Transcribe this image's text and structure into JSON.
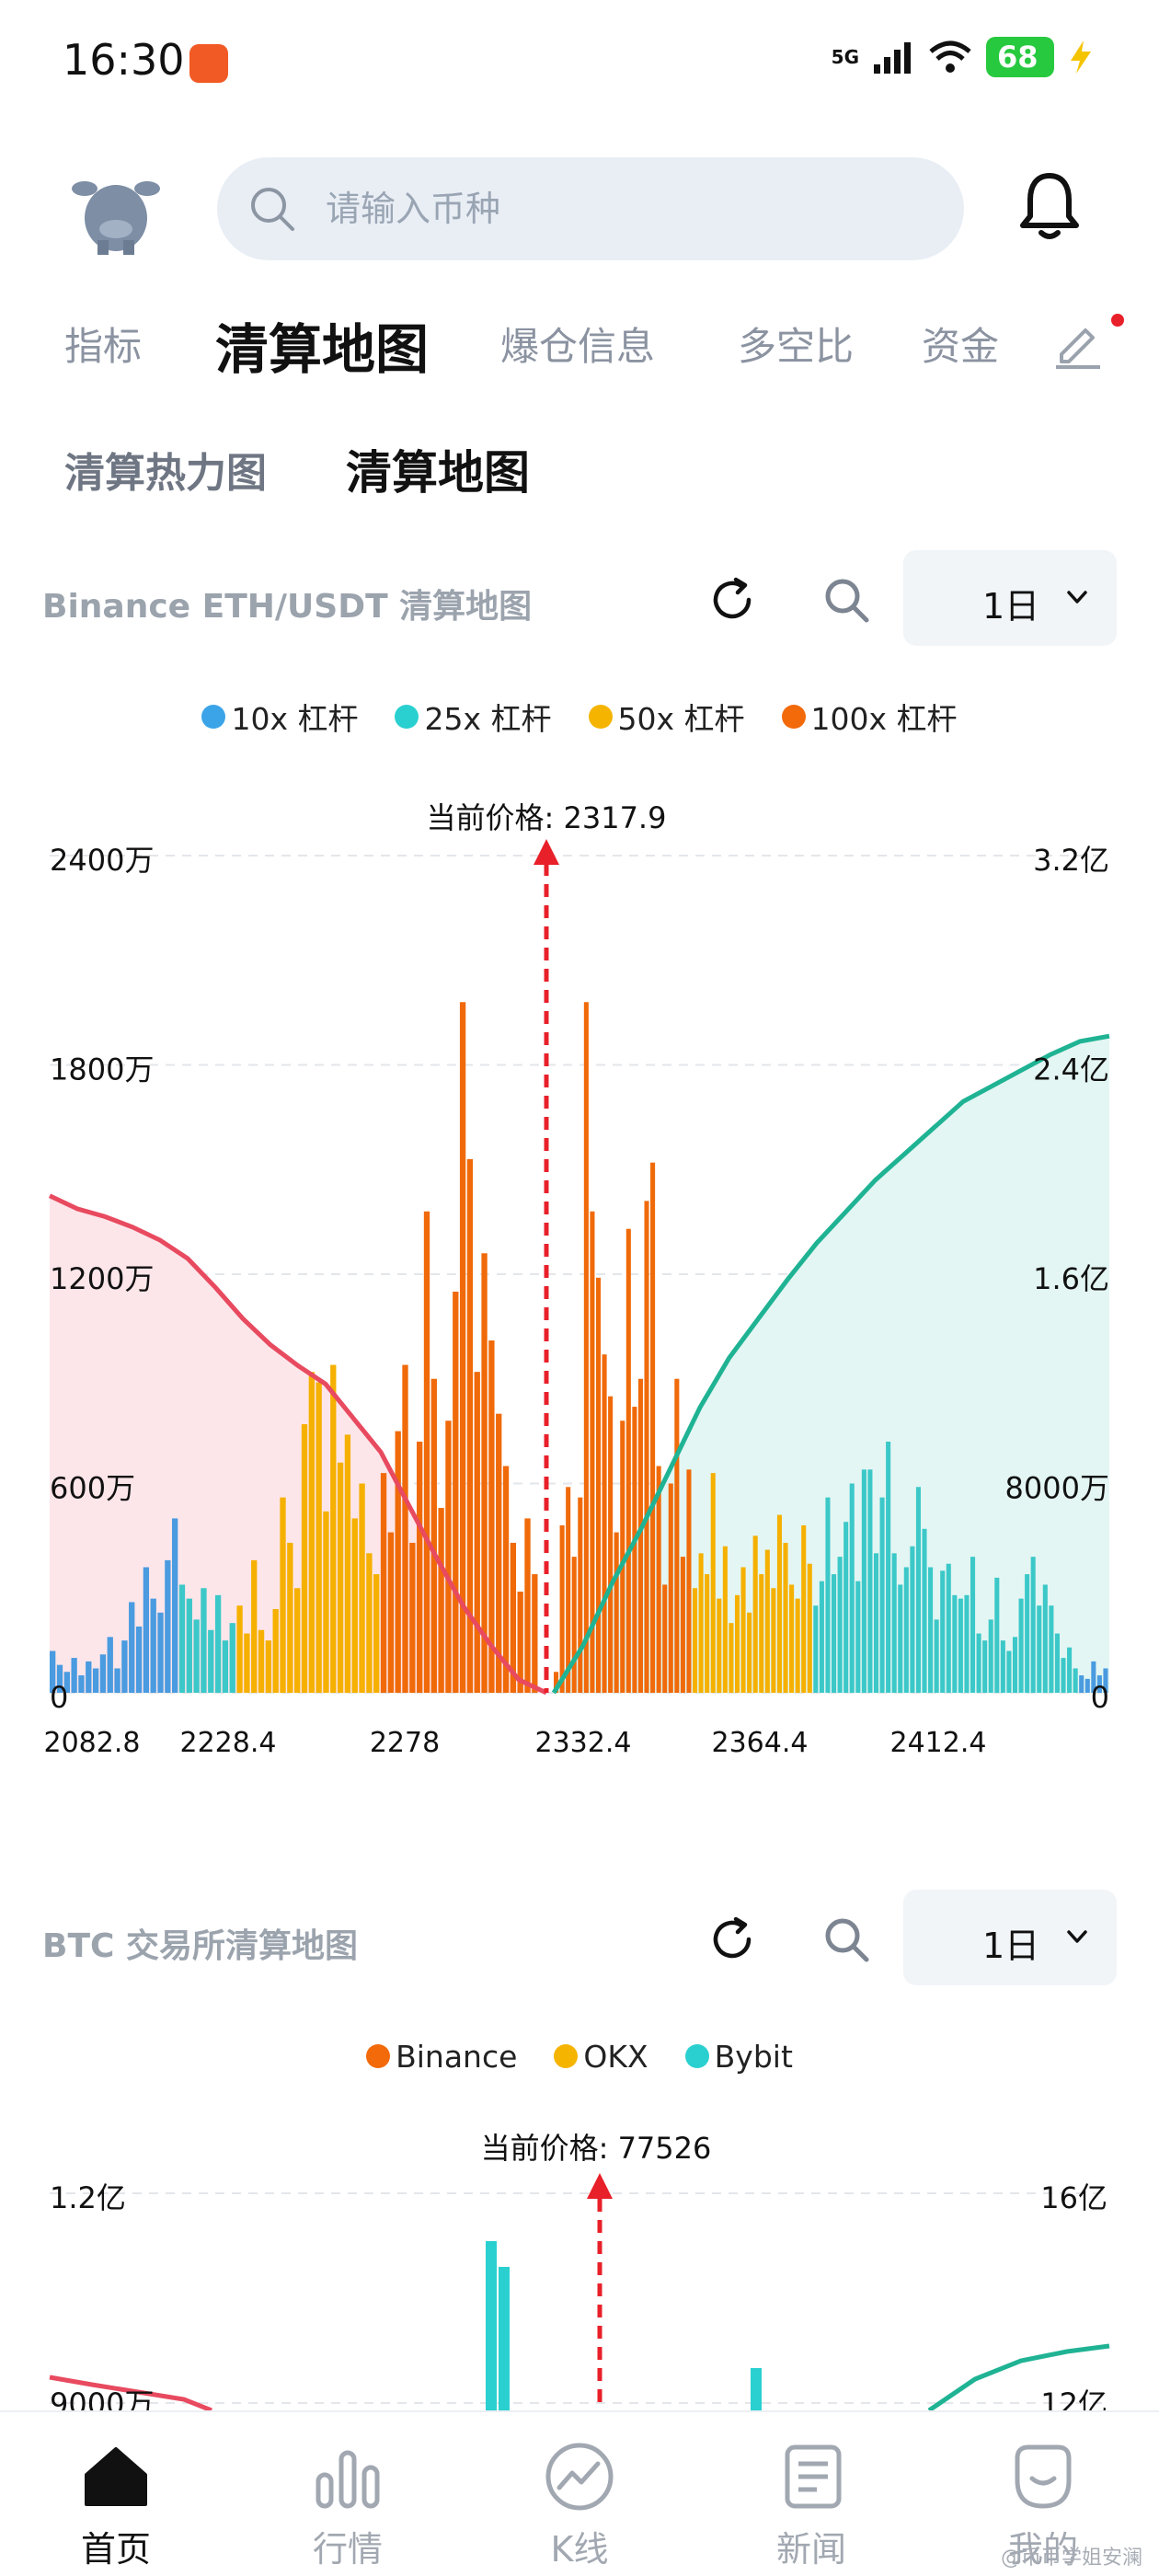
{
  "status": {
    "time": "16:30",
    "network": "5G",
    "battery": "68"
  },
  "search": {
    "placeholder": "请输入币种"
  },
  "main_tabs": [
    {
      "label": "指标",
      "active": false
    },
    {
      "label": "清算地图",
      "active": true
    },
    {
      "label": "爆仓信息",
      "active": false
    },
    {
      "label": "多空比",
      "active": false
    },
    {
      "label": "资金",
      "active": false
    }
  ],
  "sub_tabs": [
    {
      "label": "清算热力图",
      "active": false
    },
    {
      "label": "清算地图",
      "active": true
    }
  ],
  "eth_panel": {
    "title": "Binance ETH/USDT 清算地图",
    "range": "1日",
    "legend": [
      {
        "label": "10x 杠杆",
        "color": "#3ba4e8"
      },
      {
        "label": "25x 杠杆",
        "color": "#2ad0d0"
      },
      {
        "label": "50x 杠杆",
        "color": "#f5b400"
      },
      {
        "label": "100x 杠杆",
        "color": "#f26a0a"
      }
    ],
    "chart_data": {
      "type": "bar",
      "current_price_label": "当前价格: 2317.9",
      "current_price": 2317.9,
      "y_left_ticks": [
        "2400万",
        "1800万",
        "1200万",
        "600万",
        "0"
      ],
      "y_right_ticks": [
        "3.2亿",
        "2.4亿",
        "1.6亿",
        "8000万",
        "0"
      ],
      "x_tick_labels": [
        "2082.8",
        "2228.4",
        "2278",
        "2332.4",
        "2364.4",
        "2412.4"
      ],
      "ylim_left": [
        0,
        24000000
      ],
      "ylim_right": [
        0,
        320000000
      ],
      "series": [
        {
          "name": "10x",
          "color": "#4a9be0"
        },
        {
          "name": "25x",
          "color": "#3cc8c8"
        },
        {
          "name": "50x",
          "color": "#f5b000"
        },
        {
          "name": "100x",
          "color": "#f06a0a"
        }
      ],
      "bars_millions": {
        "left": [
          1.2,
          0.8,
          0.6,
          1.0,
          0.5,
          0.9,
          0.7,
          1.1,
          1.6,
          0.7,
          1.5,
          2.6,
          1.9,
          3.6,
          2.7,
          2.3,
          3.8,
          5.0,
          3.1,
          2.7,
          2.1,
          3.0,
          1.8,
          2.8,
          1.5,
          2.0,
          2.5,
          1.7,
          3.8,
          1.8,
          1.5,
          2.4,
          5.6,
          4.3,
          3.0,
          7.7,
          9.2,
          8.9,
          5.2,
          9.4,
          6.6,
          7.4,
          5.0,
          6.0,
          4.0,
          3.4,
          6.3,
          4.6,
          7.5,
          9.4,
          4.3,
          7.2,
          13.8,
          9.0,
          5.3,
          7.8,
          11.5,
          19.8,
          15.3,
          9.2,
          12.6,
          10.1,
          8.0,
          6.5,
          4.3,
          2.9,
          5.0,
          3.4
        ],
        "right": [
          0.6,
          4.8,
          5.9,
          3.9,
          5.6,
          19.8,
          13.8,
          11.9,
          9.7,
          8.5,
          4.6,
          7.8,
          13.3,
          8.2,
          9.0,
          14.1,
          15.2,
          6.5,
          3.1,
          6.0,
          9.0,
          3.9,
          6.4,
          3.0,
          4.0,
          3.4,
          6.3,
          2.7,
          4.2,
          2.0,
          2.8,
          3.6,
          2.3,
          4.5,
          3.4,
          4.1,
          3.0,
          5.1,
          4.3,
          3.1,
          2.7,
          4.8,
          3.7,
          2.5,
          3.2,
          5.6,
          3.4,
          3.9,
          4.9,
          6.0,
          3.2,
          6.4,
          6.4,
          4.0,
          5.6,
          7.2,
          4.0,
          3.1,
          3.6,
          4.2,
          5.9,
          4.7,
          3.6,
          2.1,
          3.5,
          3.7,
          2.8,
          2.7,
          2.8,
          3.9,
          1.7,
          1.5,
          2.1,
          3.3,
          1.5,
          1.2,
          1.6,
          2.7,
          3.4,
          3.9,
          2.5,
          3.1,
          2.5,
          1.7,
          1.0,
          1.3,
          0.7,
          0.5,
          0.4,
          0.9,
          0.5,
          0.7
        ]
      },
      "cumulative_short_yi": [
        1.9,
        1.85,
        1.82,
        1.78,
        1.73,
        1.66,
        1.55,
        1.43,
        1.33,
        1.25,
        1.18,
        1.05,
        0.92,
        0.72,
        0.52,
        0.33,
        0.18,
        0.05,
        0.0
      ],
      "cumulative_long_yi": [
        0.0,
        0.18,
        0.42,
        0.63,
        0.86,
        1.09,
        1.28,
        1.43,
        1.58,
        1.72,
        1.84,
        1.96,
        2.06,
        2.16,
        2.26,
        2.32,
        2.38,
        2.44,
        2.49,
        2.51
      ]
    }
  },
  "btc_panel": {
    "title": "BTC 交易所清算地图",
    "range": "1日",
    "legend": [
      {
        "label": "Binance",
        "color": "#f26a0a"
      },
      {
        "label": "OKX",
        "color": "#f5b400"
      },
      {
        "label": "Bybit",
        "color": "#2ad0d0"
      }
    ],
    "chart_data": {
      "type": "bar",
      "current_price_label": "当前价格: 77526",
      "current_price": 77526,
      "y_left_ticks": [
        "1.2亿",
        "9000万"
      ],
      "y_right_ticks": [
        "16亿",
        "12亿"
      ],
      "ylim_left": [
        0,
        120000000
      ],
      "ylim_right": [
        0,
        1600000000
      ]
    }
  },
  "bottom_nav": [
    {
      "label": "首页",
      "active": true
    },
    {
      "label": "行情",
      "active": false
    },
    {
      "label": "K线",
      "active": false
    },
    {
      "label": "新闻",
      "active": false
    },
    {
      "label": "我的",
      "active": false
    }
  ],
  "watermark": "@币币学姐安澜",
  "colors": {
    "accent_red": "#e8202a",
    "short_line": "#e84a5f",
    "long_line": "#1fb394",
    "short_fill": "#fde6ea",
    "long_fill": "#e3f6f3"
  }
}
